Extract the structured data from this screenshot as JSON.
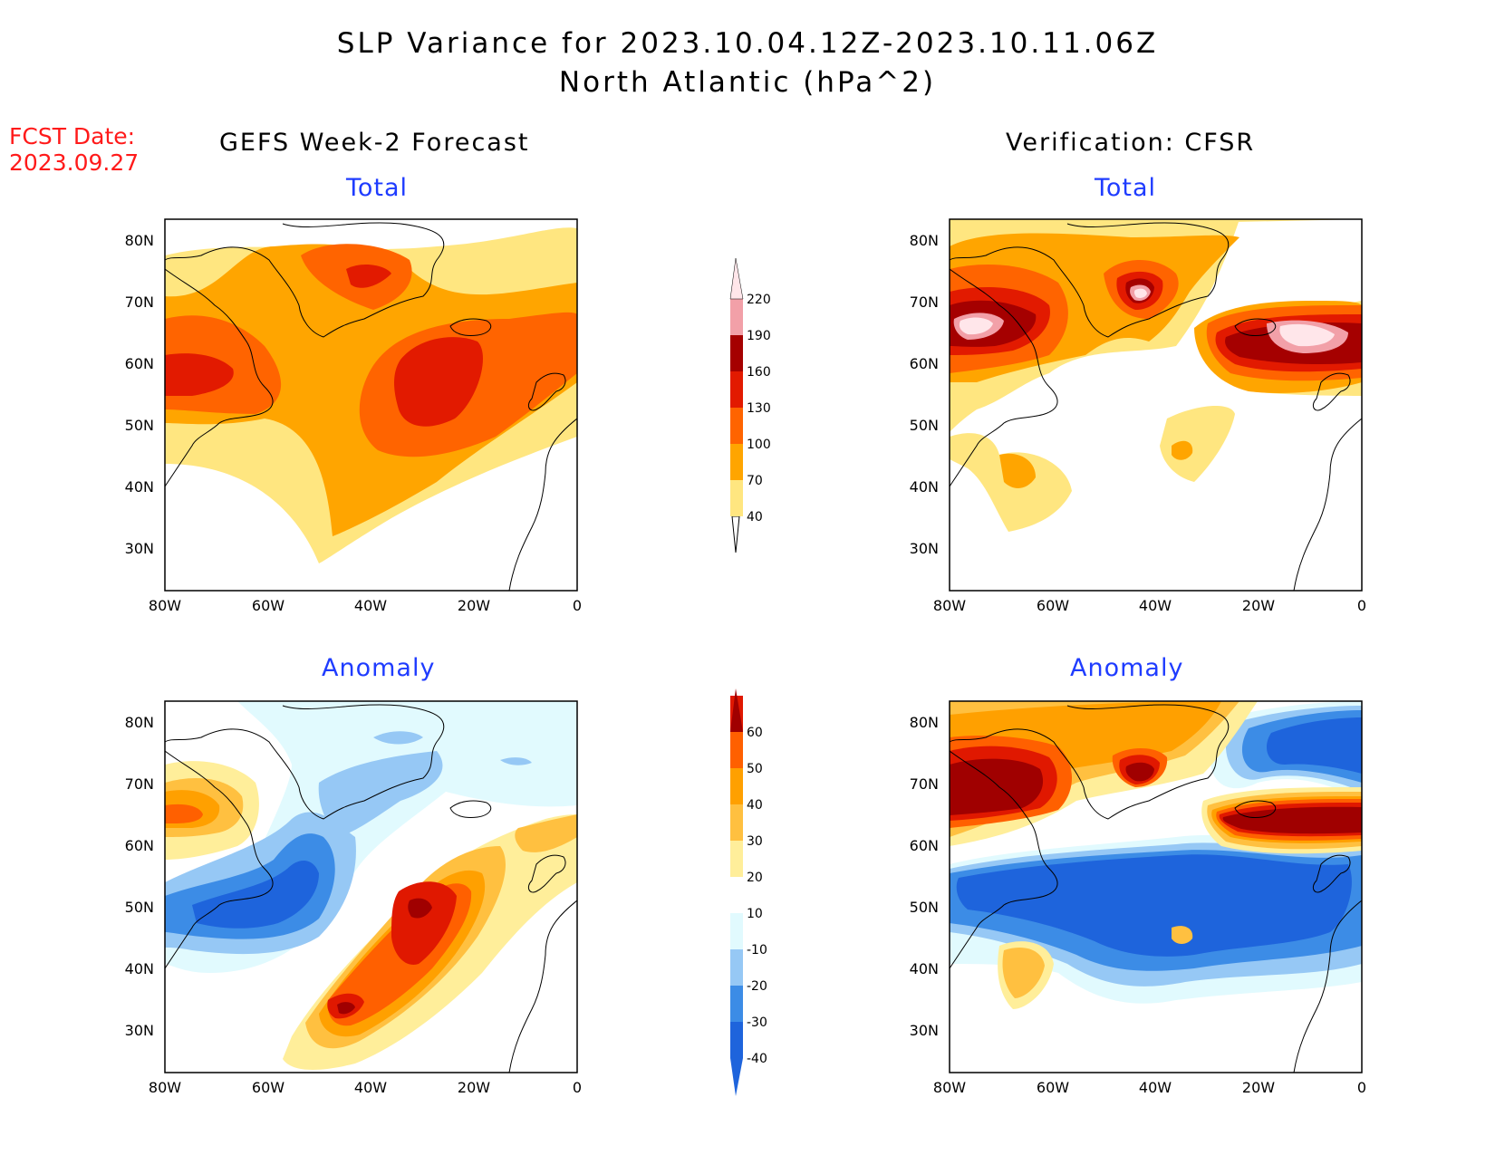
{
  "title": {
    "line1": "SLP Variance for 2023.10.04.12Z-2023.10.11.06Z",
    "line2": "North Atlantic (hPa^2)"
  },
  "fcst_date": {
    "label": "FCST Date:",
    "value": "2023.09.27"
  },
  "columns": {
    "left": "GEFS Week-2 Forecast",
    "right": "Verification: CFSR"
  },
  "panels": {
    "gefs_total": {
      "subtitle": "Total"
    },
    "cfsr_total": {
      "subtitle": "Total"
    },
    "gefs_anomaly": {
      "subtitle": "Anomaly"
    },
    "cfsr_anomaly": {
      "subtitle": "Anomaly"
    }
  },
  "axes": {
    "lon_labels": [
      "80W",
      "60W",
      "40W",
      "20W",
      "0"
    ],
    "lat_labels": [
      "30N",
      "40N",
      "50N",
      "60N",
      "70N",
      "80N"
    ]
  },
  "colorbars": {
    "total": {
      "levels": [
        "40",
        "70",
        "100",
        "130",
        "160",
        "190",
        "220"
      ],
      "colors": [
        "#ffe680",
        "#ffa500",
        "#ff6400",
        "#e21a00",
        "#a50000",
        "#f2a0a8",
        "#ffe6ea"
      ]
    },
    "anomaly": {
      "levels": [
        "-40",
        "-30",
        "-20",
        "-10",
        "10",
        "20",
        "30",
        "40",
        "50",
        "60"
      ],
      "colors": [
        "#1e64dc",
        "#3c8ce6",
        "#96c8f5",
        "#e1fafe",
        "#ffffff",
        "#ffee9a",
        "#ffc040",
        "#ffa000",
        "#ff6000",
        "#e01800",
        "#a00000"
      ]
    }
  },
  "colors": {
    "title_red": "#ff1a1a",
    "subtitle_blue": "#1f3cff"
  }
}
